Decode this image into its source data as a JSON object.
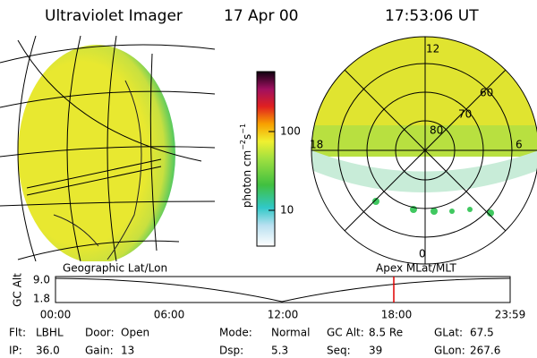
{
  "header": {
    "title": "Ultraviolet Imager",
    "date": "17 Apr 00",
    "time": "17:53:06 UT"
  },
  "colorbar": {
    "label": {
      "base": "photon cm",
      "exp1": "−2",
      "mid": "s",
      "exp2": "−1"
    },
    "ticks": [
      "100",
      "10"
    ]
  },
  "polar": {
    "mlt_labels": [
      "12",
      "18",
      "6",
      "0"
    ],
    "lat_labels": [
      "80",
      "70",
      "60"
    ]
  },
  "panels": {
    "left": "Geographic Lat/Lon",
    "right": "Apex MLat/MLT"
  },
  "timeline": {
    "ylabel": "GC Alt",
    "yticks": [
      "9.0",
      "1.8"
    ],
    "xticks": [
      "00:00",
      "06:00",
      "12:00",
      "18:00",
      "23:59"
    ]
  },
  "info": [
    [
      {
        "label": "Flt:",
        "value": "LBHL"
      },
      {
        "label": "Door:",
        "value": "Open"
      },
      {
        "label": "Mode:",
        "value": "Normal"
      },
      {
        "label": "GC Alt:",
        "value": "8.5 Re"
      },
      {
        "label": "GLat:",
        "value": "67.5"
      }
    ],
    [
      {
        "label": "IP:",
        "value": "36.0"
      },
      {
        "label": "Gain:",
        "value": "13"
      },
      {
        "label": "Dsp:",
        "value": "5.3"
      },
      {
        "label": "Seq:",
        "value": "39"
      },
      {
        "label": "GLon:",
        "value": "267.6"
      }
    ]
  ]
}
